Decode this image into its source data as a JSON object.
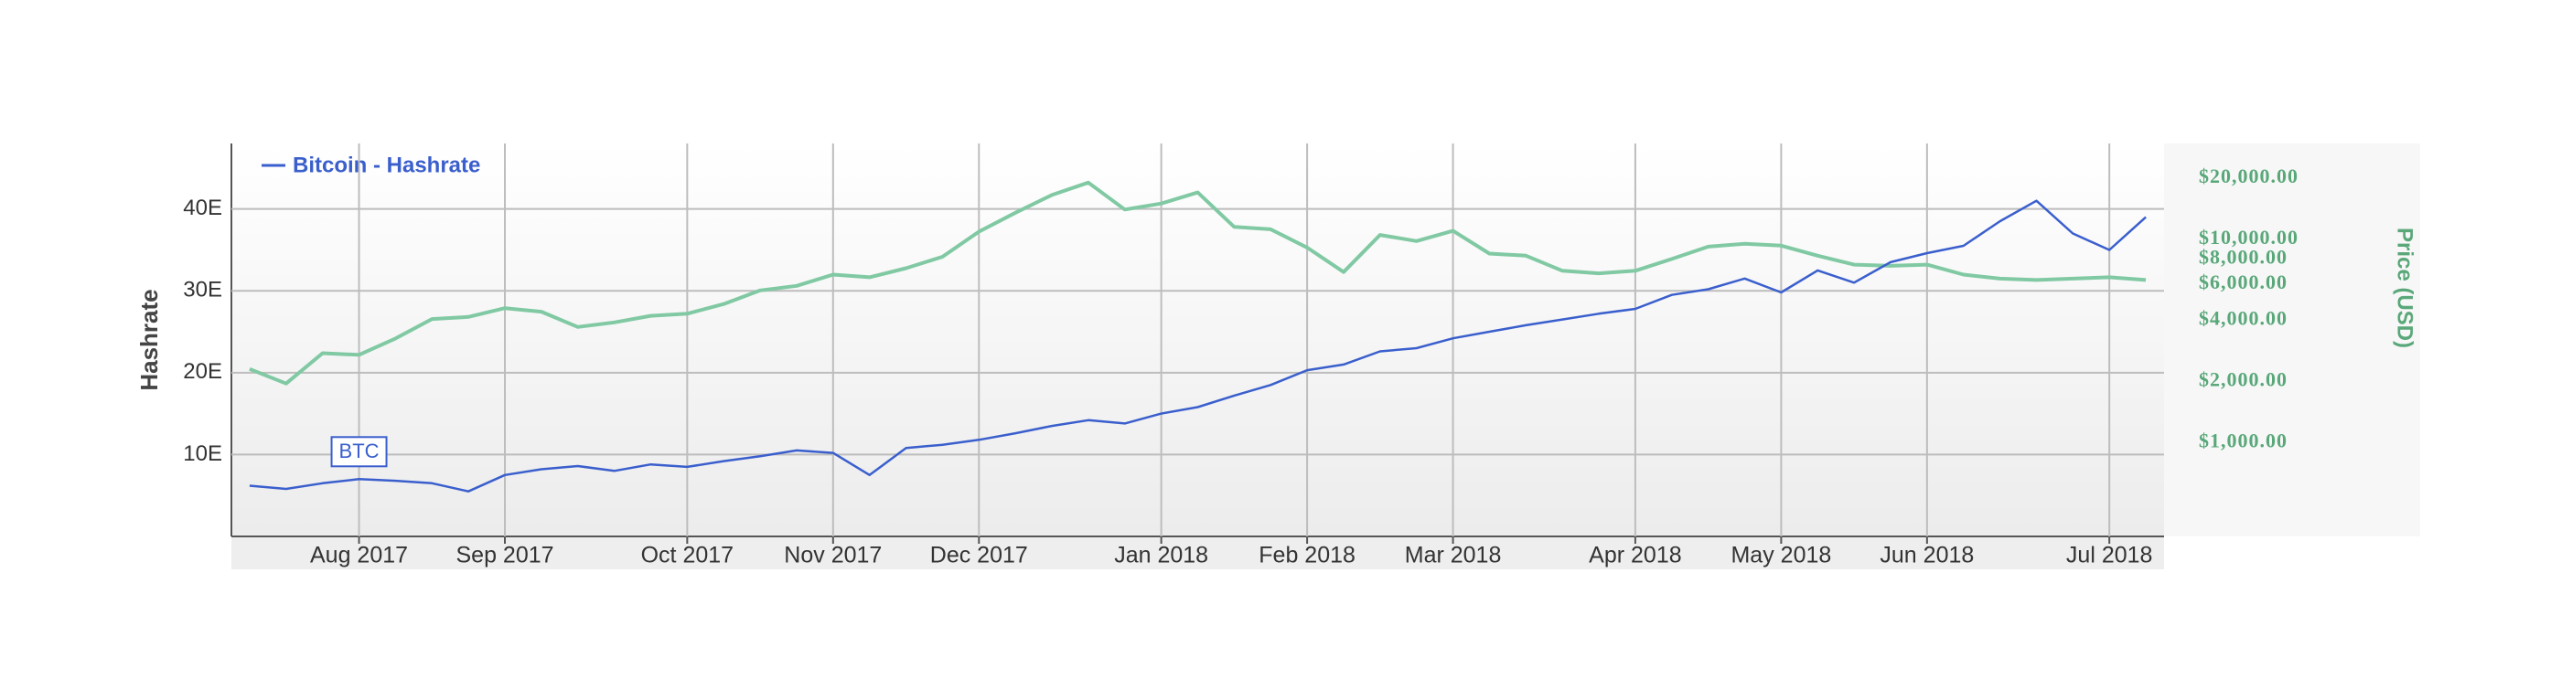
{
  "chart_data": {
    "type": "line",
    "legend_text": "Bitcoin - Hashrate",
    "ylabel": "Hashrate",
    "y2label": "Price (USD)",
    "annotation": "BTC",
    "legend_position": "top-left",
    "grid": true,
    "y2_log": true,
    "categories": [
      null,
      null,
      null,
      "Aug 2017",
      null,
      null,
      null,
      "Sep 2017",
      null,
      null,
      null,
      null,
      "Oct 2017",
      null,
      null,
      null,
      "Nov 2017",
      null,
      null,
      null,
      "Dec 2017",
      null,
      null,
      null,
      null,
      "Jan 2018",
      null,
      null,
      null,
      "Feb 2018",
      null,
      null,
      null,
      "Mar 2018",
      null,
      null,
      null,
      null,
      "Apr 2018",
      null,
      null,
      null,
      "May 2018",
      null,
      null,
      null,
      "Jun 2018",
      null,
      null,
      null,
      null,
      "Jul 2018",
      null
    ],
    "ylim": [
      0,
      48
    ],
    "yticks": [
      {
        "value": 10,
        "label": "10E"
      },
      {
        "value": 20,
        "label": "20E"
      },
      {
        "value": 30,
        "label": "30E"
      },
      {
        "value": 40,
        "label": "40E"
      }
    ],
    "y2lim": [
      345,
      29600
    ],
    "y2ticks": [
      {
        "value": 1000,
        "label": "$1,000.00"
      },
      {
        "value": 2000,
        "label": "$2,000.00"
      },
      {
        "value": 4000,
        "label": "$4,000.00"
      },
      {
        "value": 6000,
        "label": "$6,000.00"
      },
      {
        "value": 8000,
        "label": "$8,000.00"
      },
      {
        "value": 10000,
        "label": "$10,000.00"
      },
      {
        "value": 20000,
        "label": "$20,000.00"
      }
    ],
    "series": [
      {
        "name": "Bitcoin - Hashrate",
        "color": "#3a5fcd",
        "values": [
          6.2,
          5.8,
          6.5,
          7,
          6.8,
          6.5,
          5.5,
          7.5,
          8.2,
          8.6,
          8,
          8.8,
          8.5,
          9.2,
          9.8,
          10.5,
          10.2,
          7.5,
          10.8,
          11.2,
          11.8,
          12.6,
          13.5,
          14.2,
          13.8,
          15,
          15.8,
          17.2,
          18.5,
          20.3,
          21,
          22.6,
          23,
          24.2,
          25,
          25.8,
          26.5,
          27.2,
          27.8,
          29.5,
          30.2,
          31.5,
          29.8,
          32.5,
          31,
          33.5,
          34.6,
          35.5,
          38.5,
          41,
          37,
          35,
          39
        ]
      },
      {
        "color": "#80c9a3",
        "axis": "y2",
        "values": [
          2300,
          1950,
          2750,
          2700,
          3250,
          4050,
          4150,
          4580,
          4400,
          3700,
          3900,
          4200,
          4300,
          4800,
          5600,
          5900,
          6700,
          6500,
          7200,
          8200,
          10900,
          13500,
          16500,
          19000,
          14000,
          15000,
          17000,
          11500,
          11200,
          9100,
          6900,
          10500,
          9800,
          11000,
          8500,
          8300,
          7000,
          6800,
          7000,
          8000,
          9200,
          9500,
          9300,
          8300,
          7500,
          7400,
          7500,
          6700,
          6400,
          6300,
          6400,
          6500,
          6300
        ]
      }
    ]
  }
}
